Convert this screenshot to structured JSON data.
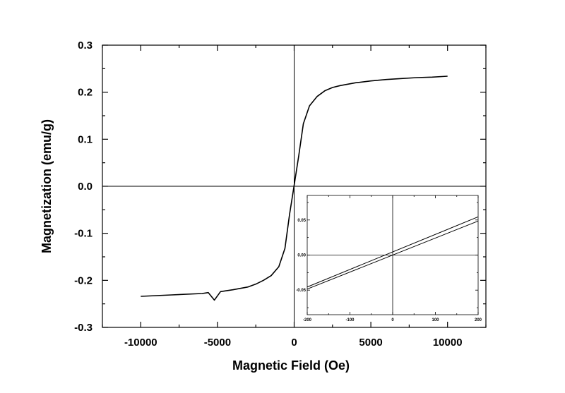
{
  "chart_data": [
    {
      "type": "line",
      "xlabel": "Magnetic  Field (Oe)",
      "ylabel": "Magnetization (emu/g)",
      "xlim": [
        -12500,
        12500
      ],
      "ylim": [
        -0.3,
        0.3
      ],
      "xticks": [
        -10000,
        -5000,
        0,
        5000,
        10000
      ],
      "xtick_labels": [
        "-10000",
        "-5000",
        "0",
        "5000",
        "10000"
      ],
      "yticks": [
        -0.3,
        -0.2,
        -0.1,
        0.0,
        0.1,
        0.2,
        0.3
      ],
      "ytick_labels": [
        "-0.3",
        "-0.2",
        "-0.1",
        "0.0",
        "0.1",
        "0.2",
        "0.3"
      ],
      "grid": false,
      "zero_lines": true,
      "series": [
        {
          "x": [
            -10000,
            -8000,
            -6000,
            -5600,
            -5200,
            -4800,
            -4000,
            -3000,
            -2500,
            -2000,
            -1500,
            -1000,
            -600,
            -300,
            0,
            300,
            600,
            1000,
            1500,
            2000,
            2500,
            3000,
            4000,
            5000,
            6000,
            7000,
            8000,
            9000,
            10000
          ],
          "y": [
            -0.234,
            -0.231,
            -0.228,
            -0.226,
            -0.242,
            -0.224,
            -0.22,
            -0.214,
            -0.208,
            -0.2,
            -0.19,
            -0.171,
            -0.132,
            -0.06,
            0.002,
            0.065,
            0.133,
            0.171,
            0.191,
            0.203,
            0.21,
            0.214,
            0.22,
            0.224,
            0.227,
            0.229,
            0.231,
            0.232,
            0.234
          ]
        }
      ]
    },
    {
      "type": "line",
      "inset": true,
      "xlim": [
        -200,
        200
      ],
      "ylim": [
        -0.085,
        0.085
      ],
      "xticks": [
        -200,
        -100,
        0,
        100,
        200
      ],
      "xtick_labels": [
        "-200",
        "-100",
        "0",
        "100",
        "200"
      ],
      "yticks": [
        -0.05,
        0.0,
        0.05
      ],
      "ytick_labels": [
        "-0.05",
        "0.00",
        "0.05"
      ],
      "grid": false,
      "zero_lines": true,
      "series": [
        {
          "x": [
            -200,
            200
          ],
          "y": [
            -0.0455,
            0.0545
          ]
        },
        {
          "x": [
            -200,
            200
          ],
          "y": [
            -0.0485,
            0.0485
          ]
        }
      ]
    }
  ]
}
